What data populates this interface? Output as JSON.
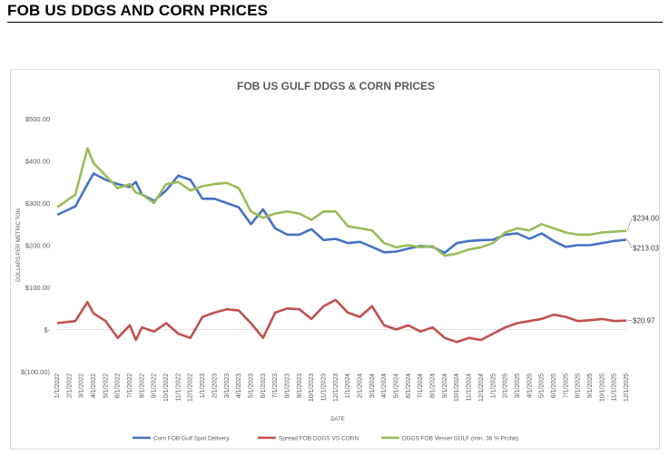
{
  "page": {
    "title": "FOB US DDGS AND CORN PRICES"
  },
  "chart_data": {
    "type": "line",
    "title": "FOB US GULF DDGS & CORN PRICES",
    "xlabel": "DATE",
    "ylabel": "DOLLARS PER METRIC TON",
    "ylim": [
      -100,
      500
    ],
    "y_ticks": [
      500,
      400,
      300,
      200,
      100,
      0,
      -100
    ],
    "y_tick_labels": [
      "$500.00",
      "$400.00",
      "$300.00",
      "$200.00",
      "$100.00",
      "$-",
      "$(100.00)"
    ],
    "x_tick_labels": [
      "1/1/2022",
      "2/1/2022",
      "3/1/2022",
      "4/1/2022",
      "5/1/2022",
      "6/1/2022",
      "7/1/2022",
      "8/1/2022",
      "9/1/2022",
      "10/1/2022",
      "11/1/2022",
      "12/1/2022",
      "1/1/2023",
      "2/1/2023",
      "3/1/2023",
      "4/1/2023",
      "5/1/2023",
      "6/1/2023",
      "7/1/2023",
      "8/1/2023",
      "9/1/2023",
      "10/1/2023",
      "11/1/2023",
      "12/1/2023",
      "1/1/2024",
      "2/1/2024",
      "3/1/2024",
      "4/1/2024",
      "5/1/2024",
      "6/1/2024",
      "7/1/2024",
      "8/1/2024",
      "9/1/2024",
      "10/1/2024",
      "11/1/2024",
      "12/1/2024",
      "1/1/2025",
      "2/1/2025",
      "3/1/2025",
      "4/1/2025",
      "5/1/2025",
      "6/1/2025",
      "7/1/2025",
      "8/1/2025",
      "9/1/2025",
      "10/1/2025",
      "11/1/2025",
      "12/1/2025"
    ],
    "grid": false,
    "legend": "bottom",
    "series": [
      {
        "name": "Corn FOB Gulf Spot Delivery",
        "color": "#4472c4",
        "end_label": "$213.03",
        "points": [
          [
            0,
            272
          ],
          [
            1.5,
            292
          ],
          [
            2.5,
            345
          ],
          [
            3,
            370
          ],
          [
            4,
            355
          ],
          [
            5,
            345
          ],
          [
            6,
            338
          ],
          [
            6.5,
            350
          ],
          [
            7,
            320
          ],
          [
            8,
            305
          ],
          [
            9,
            330
          ],
          [
            10,
            365
          ],
          [
            11,
            355
          ],
          [
            12,
            310
          ],
          [
            13,
            310
          ],
          [
            14,
            300
          ],
          [
            15,
            290
          ],
          [
            16,
            250
          ],
          [
            17,
            285
          ],
          [
            18,
            240
          ],
          [
            19,
            225
          ],
          [
            20,
            225
          ],
          [
            21,
            238
          ],
          [
            22,
            212
          ],
          [
            23,
            215
          ],
          [
            24,
            205
          ],
          [
            25,
            208
          ],
          [
            26,
            196
          ],
          [
            27,
            183
          ],
          [
            28,
            185
          ],
          [
            29,
            192
          ],
          [
            30,
            198
          ],
          [
            31,
            196
          ],
          [
            32,
            182
          ],
          [
            33,
            205
          ],
          [
            34,
            210
          ],
          [
            35,
            212
          ],
          [
            36,
            213
          ],
          [
            37,
            225
          ],
          [
            38,
            228
          ],
          [
            39,
            215
          ],
          [
            40,
            228
          ],
          [
            41,
            210
          ],
          [
            42,
            196
          ],
          [
            43,
            200
          ],
          [
            44,
            200
          ],
          [
            45,
            205
          ],
          [
            46,
            210
          ],
          [
            47,
            213
          ]
        ]
      },
      {
        "name": "Spread FOB DDGS VS CORN",
        "color": "#c0504d",
        "end_label": "$20.97",
        "points": [
          [
            0,
            15
          ],
          [
            1.5,
            20
          ],
          [
            2.5,
            65
          ],
          [
            3,
            38
          ],
          [
            4,
            20
          ],
          [
            5,
            -20
          ],
          [
            6,
            10
          ],
          [
            6.5,
            -25
          ],
          [
            7,
            5
          ],
          [
            8,
            -5
          ],
          [
            9,
            15
          ],
          [
            10,
            -10
          ],
          [
            11,
            -20
          ],
          [
            12,
            30
          ],
          [
            13,
            40
          ],
          [
            14,
            48
          ],
          [
            15,
            45
          ],
          [
            16,
            15
          ],
          [
            17,
            -20
          ],
          [
            18,
            40
          ],
          [
            19,
            50
          ],
          [
            20,
            48
          ],
          [
            21,
            25
          ],
          [
            22,
            55
          ],
          [
            23,
            70
          ],
          [
            24,
            40
          ],
          [
            25,
            30
          ],
          [
            26,
            55
          ],
          [
            27,
            10
          ],
          [
            28,
            0
          ],
          [
            29,
            10
          ],
          [
            30,
            -5
          ],
          [
            31,
            5
          ],
          [
            32,
            -20
          ],
          [
            33,
            -30
          ],
          [
            34,
            -20
          ],
          [
            35,
            -25
          ],
          [
            36,
            -10
          ],
          [
            37,
            5
          ],
          [
            38,
            15
          ],
          [
            39,
            20
          ],
          [
            40,
            25
          ],
          [
            41,
            35
          ],
          [
            42,
            30
          ],
          [
            43,
            20
          ],
          [
            44,
            22
          ],
          [
            45,
            25
          ],
          [
            46,
            20
          ],
          [
            47,
            21
          ]
        ]
      },
      {
        "name": "DDGS FOB Vessel GULF  (min. 36 % Profat)",
        "color": "#9bbb59",
        "end_label": "$234.00",
        "points": [
          [
            0,
            290
          ],
          [
            1.5,
            320
          ],
          [
            2.5,
            430
          ],
          [
            3,
            395
          ],
          [
            4,
            365
          ],
          [
            5,
            335
          ],
          [
            6,
            345
          ],
          [
            6.5,
            325
          ],
          [
            7,
            320
          ],
          [
            8,
            300
          ],
          [
            9,
            345
          ],
          [
            10,
            350
          ],
          [
            11,
            330
          ],
          [
            12,
            340
          ],
          [
            13,
            345
          ],
          [
            14,
            348
          ],
          [
            15,
            335
          ],
          [
            16,
            280
          ],
          [
            17,
            265
          ],
          [
            18,
            275
          ],
          [
            19,
            280
          ],
          [
            20,
            275
          ],
          [
            21,
            260
          ],
          [
            22,
            280
          ],
          [
            23,
            280
          ],
          [
            24,
            245
          ],
          [
            25,
            240
          ],
          [
            26,
            235
          ],
          [
            27,
            205
          ],
          [
            28,
            195
          ],
          [
            29,
            200
          ],
          [
            30,
            195
          ],
          [
            31,
            198
          ],
          [
            32,
            175
          ],
          [
            33,
            180
          ],
          [
            34,
            190
          ],
          [
            35,
            195
          ],
          [
            36,
            205
          ],
          [
            37,
            230
          ],
          [
            38,
            240
          ],
          [
            39,
            235
          ],
          [
            40,
            250
          ],
          [
            41,
            240
          ],
          [
            42,
            230
          ],
          [
            43,
            225
          ],
          [
            44,
            225
          ],
          [
            45,
            230
          ],
          [
            46,
            232
          ],
          [
            47,
            234
          ]
        ]
      }
    ]
  }
}
